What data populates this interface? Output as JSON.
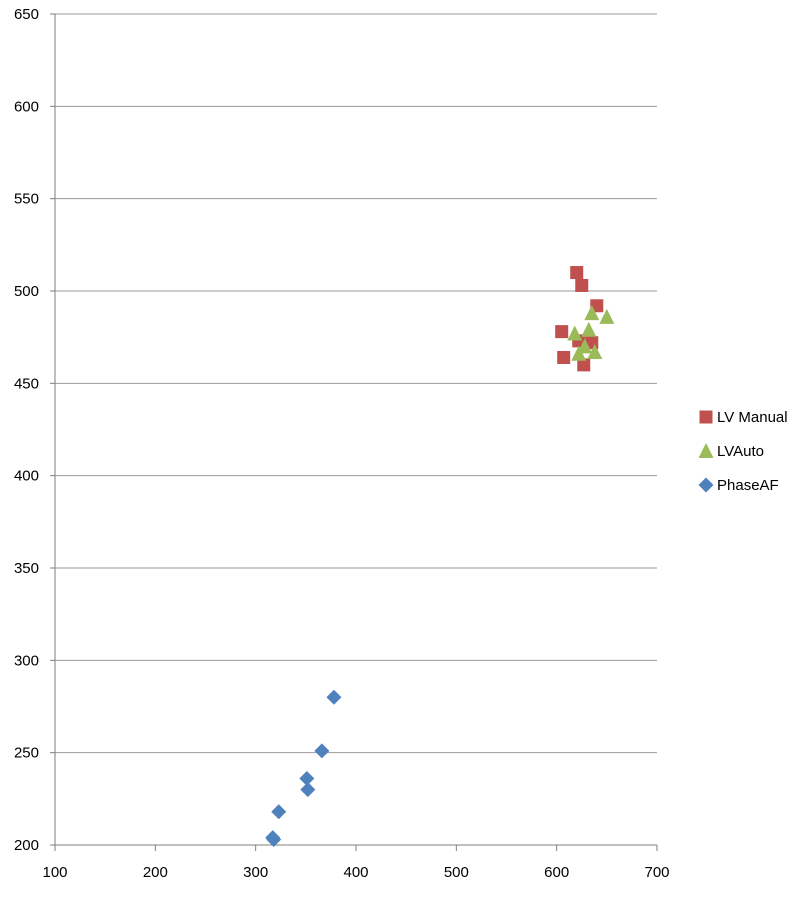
{
  "chart_data": {
    "type": "scatter",
    "title": "",
    "xlabel": "",
    "ylabel": "",
    "xlim": [
      100,
      700
    ],
    "ylim": [
      200,
      650
    ],
    "x_ticks": [
      100,
      200,
      300,
      400,
      500,
      600,
      700
    ],
    "y_ticks": [
      200,
      250,
      300,
      350,
      400,
      450,
      500,
      550,
      600,
      650
    ],
    "grid": "horizontal",
    "legend_position": "right",
    "series": [
      {
        "name": "LV Manual",
        "marker": "square",
        "color": "#C0504D",
        "points": [
          [
            620,
            510
          ],
          [
            625,
            503
          ],
          [
            640,
            492
          ],
          [
            605,
            478
          ],
          [
            622,
            473
          ],
          [
            635,
            472
          ],
          [
            607,
            464
          ],
          [
            627,
            460
          ]
        ]
      },
      {
        "name": "LVAuto",
        "marker": "triangle",
        "color": "#9BBB59",
        "points": [
          [
            635,
            488
          ],
          [
            650,
            486
          ],
          [
            618,
            477
          ],
          [
            632,
            479
          ],
          [
            628,
            470
          ],
          [
            622,
            466
          ],
          [
            638,
            467
          ]
        ]
      },
      {
        "name": "PhaseAF",
        "marker": "diamond",
        "color": "#4F81BD",
        "points": [
          [
            378,
            280
          ],
          [
            366,
            251
          ],
          [
            351,
            236
          ],
          [
            352,
            230
          ],
          [
            323,
            218
          ],
          [
            317,
            204
          ],
          [
            318,
            203
          ]
        ]
      }
    ]
  }
}
